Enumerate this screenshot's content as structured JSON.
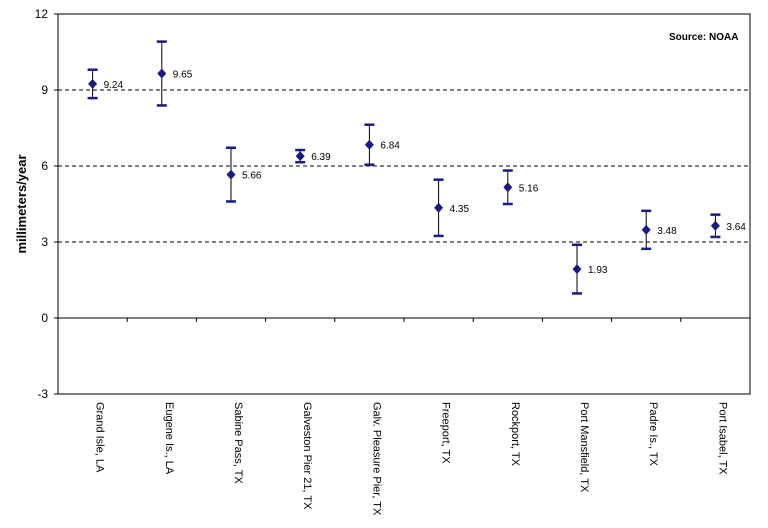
{
  "chart_data": {
    "type": "scatter",
    "title": "",
    "source_note": "Source:  NOAA",
    "ylabel": "millimeters/year",
    "xlabel": "",
    "ylim": [
      -3,
      12
    ],
    "yticks": [
      "12",
      "9",
      "6",
      "3",
      "0",
      "-3"
    ],
    "ytick_values": [
      12,
      9,
      6,
      3,
      0,
      -3
    ],
    "grid": "dashed horizontal at 3, 6, 9",
    "legend": "none",
    "marker_color": "#1a1a80",
    "categories": [
      "Grand Isle, LA",
      "Eugene Is., LA",
      "Sabine Pass, TX",
      "Galveston Pier 21, TX",
      "Galv. Pleasure Pier, TX",
      "Freeport, TX",
      "Rockport, TX",
      "Port Mansfield, TX",
      "Padre Is., TX",
      "Port Isabel, TX"
    ],
    "values": [
      9.24,
      9.65,
      5.66,
      6.39,
      6.84,
      4.35,
      5.16,
      1.93,
      3.48,
      3.64
    ],
    "value_labels": [
      "9.24",
      "9.65",
      "5.66",
      "6.39",
      "6.84",
      "4.35",
      "5.16",
      "1.93",
      "3.48",
      "3.64"
    ],
    "error_low": [
      8.68,
      8.39,
      4.6,
      6.15,
      6.05,
      3.24,
      4.5,
      0.97,
      2.73,
      3.2
    ],
    "error_high": [
      9.8,
      10.91,
      6.72,
      6.63,
      7.63,
      5.46,
      5.82,
      2.89,
      4.23,
      4.08
    ]
  }
}
